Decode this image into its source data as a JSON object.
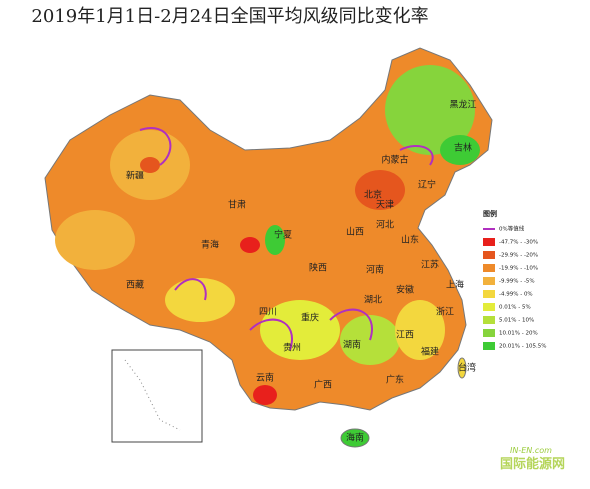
{
  "title": "2019年1月1日-2月24日全国平均风级同比变化率",
  "provinces": [
    "新疆",
    "西藏",
    "青海",
    "甘肃",
    "内蒙古",
    "黑龙江",
    "吉林",
    "辽宁",
    "北京",
    "天津",
    "河北",
    "山西",
    "宁夏",
    "陕西",
    "河南",
    "山东",
    "江苏",
    "安徽",
    "湖北",
    "四川",
    "重庆",
    "浙江",
    "湖南",
    "江西",
    "贵州",
    "福建",
    "云南",
    "广西",
    "广东",
    "台湾",
    "海南",
    "上海"
  ],
  "legend": {
    "title": "图例",
    "contour": {
      "label": "0%等值线",
      "color": "#b030c0"
    },
    "items": [
      {
        "label": "-47.7% - -30%",
        "color": "#e8201c"
      },
      {
        "label": "-29.9% - -20%",
        "color": "#e5561e"
      },
      {
        "label": "-19.9% - -10%",
        "color": "#ee8a2a"
      },
      {
        "label": "-9.99% - -5%",
        "color": "#f2b13c"
      },
      {
        "label": "-4.99% - 0%",
        "color": "#f3d73e"
      },
      {
        "label": "0.01% - 5%",
        "color": "#e3ec3a"
      },
      {
        "label": "5.01% - 10%",
        "color": "#b5e03a"
      },
      {
        "label": "10.01% - 20%",
        "color": "#86d43c"
      },
      {
        "label": "20.01% - 105.5%",
        "color": "#3ecb35"
      }
    ]
  },
  "watermark": {
    "site": "IN-EN.com",
    "name": "国际能源网"
  }
}
